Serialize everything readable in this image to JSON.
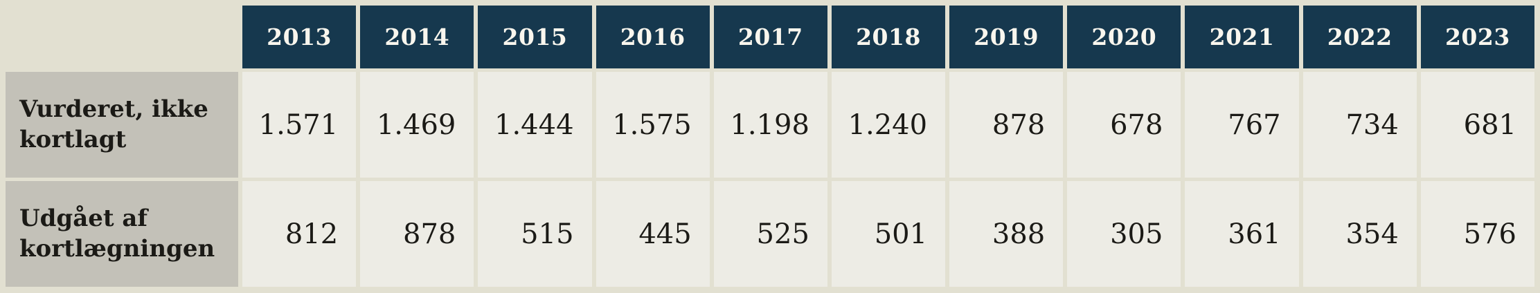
{
  "table": {
    "columns": [
      "2013",
      "2014",
      "2015",
      "2016",
      "2017",
      "2018",
      "2019",
      "2020",
      "2021",
      "2022",
      "2023"
    ],
    "rows": [
      {
        "label": "Vurderet, ikke kortlagt",
        "values": [
          "1.571",
          "1.469",
          "1.444",
          "1.575",
          "1.198",
          "1.240",
          "878",
          "678",
          "767",
          "734",
          "681"
        ]
      },
      {
        "label": "Udgået af kortlægningen",
        "values": [
          "812",
          "878",
          "515",
          "445",
          "525",
          "501",
          "388",
          "305",
          "361",
          "354",
          "576"
        ]
      }
    ]
  },
  "colors": {
    "page_bg": "#E2E0D1",
    "header_bg": "#16384E",
    "header_text": "#F9F6EE",
    "label_bg": "#C3C1B8",
    "cell_bg": "#EDECE5",
    "text": "#1B1A16"
  },
  "chart_data": {
    "type": "table",
    "categories": [
      "2013",
      "2014",
      "2015",
      "2016",
      "2017",
      "2018",
      "2019",
      "2020",
      "2021",
      "2022",
      "2023"
    ],
    "series": [
      {
        "name": "Vurderet, ikke kortlagt",
        "values": [
          1571,
          1469,
          1444,
          1575,
          1198,
          1240,
          878,
          678,
          767,
          734,
          681
        ]
      },
      {
        "name": "Udgået af kortlægningen",
        "values": [
          812,
          878,
          515,
          445,
          525,
          501,
          388,
          305,
          361,
          354,
          576
        ]
      }
    ],
    "title": "",
    "xlabel": "",
    "ylabel": "",
    "legend_position": "none",
    "number_format": "da-DK thousands separator '.'"
  }
}
